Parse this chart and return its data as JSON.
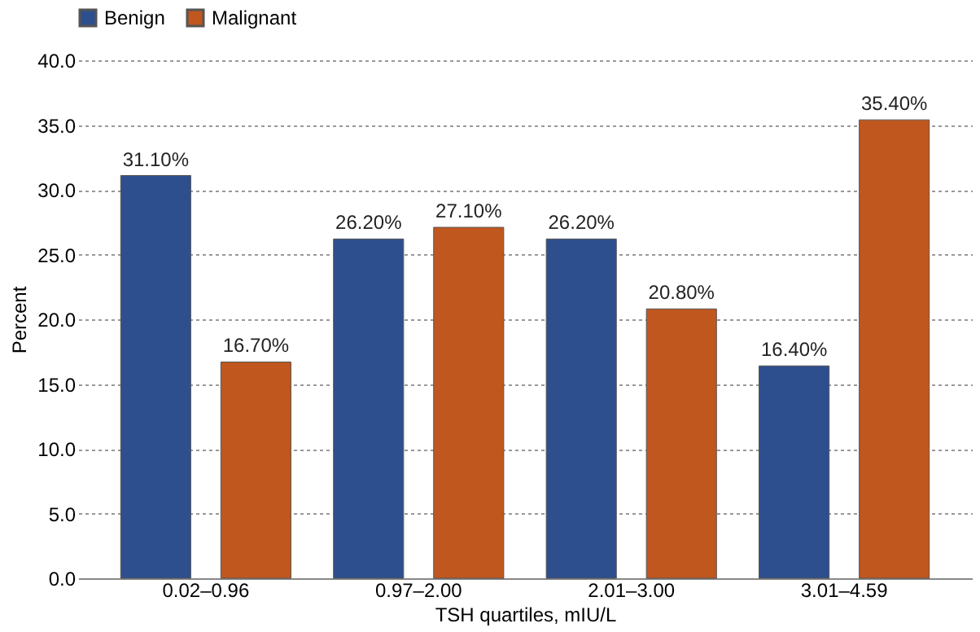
{
  "chart_data": {
    "type": "bar",
    "xlabel": "TSH quartiles, mIU/L",
    "ylabel": "Percent",
    "categories": [
      "0.02–0.96",
      "0.97–2.00",
      "2.01–3.00",
      "3.01–4.59"
    ],
    "series": [
      {
        "name": "Benign",
        "color": "#2e4f8e",
        "values": [
          31.1,
          26.2,
          26.2,
          16.4
        ],
        "value_labels": [
          "31.10%",
          "26.20%",
          "26.20%",
          "16.40%"
        ]
      },
      {
        "name": "Malignant",
        "color": "#c0571f",
        "values": [
          16.7,
          27.1,
          20.8,
          35.4
        ],
        "value_labels": [
          "16.70%",
          "27.10%",
          "20.80%",
          "35.40%"
        ]
      }
    ],
    "ylim": [
      0,
      40
    ],
    "yticks": [
      {
        "value": 0,
        "label": "0.0"
      },
      {
        "value": 5,
        "label": "5.0"
      },
      {
        "value": 10,
        "label": "10.0"
      },
      {
        "value": 15,
        "label": "15.0"
      },
      {
        "value": 20,
        "label": "20.0"
      },
      {
        "value": 25,
        "label": "25.0"
      },
      {
        "value": 30,
        "label": "30.0"
      },
      {
        "value": 35,
        "label": "35.0"
      },
      {
        "value": 40,
        "label": "40.0"
      }
    ],
    "grid": "y",
    "legend": "top"
  }
}
